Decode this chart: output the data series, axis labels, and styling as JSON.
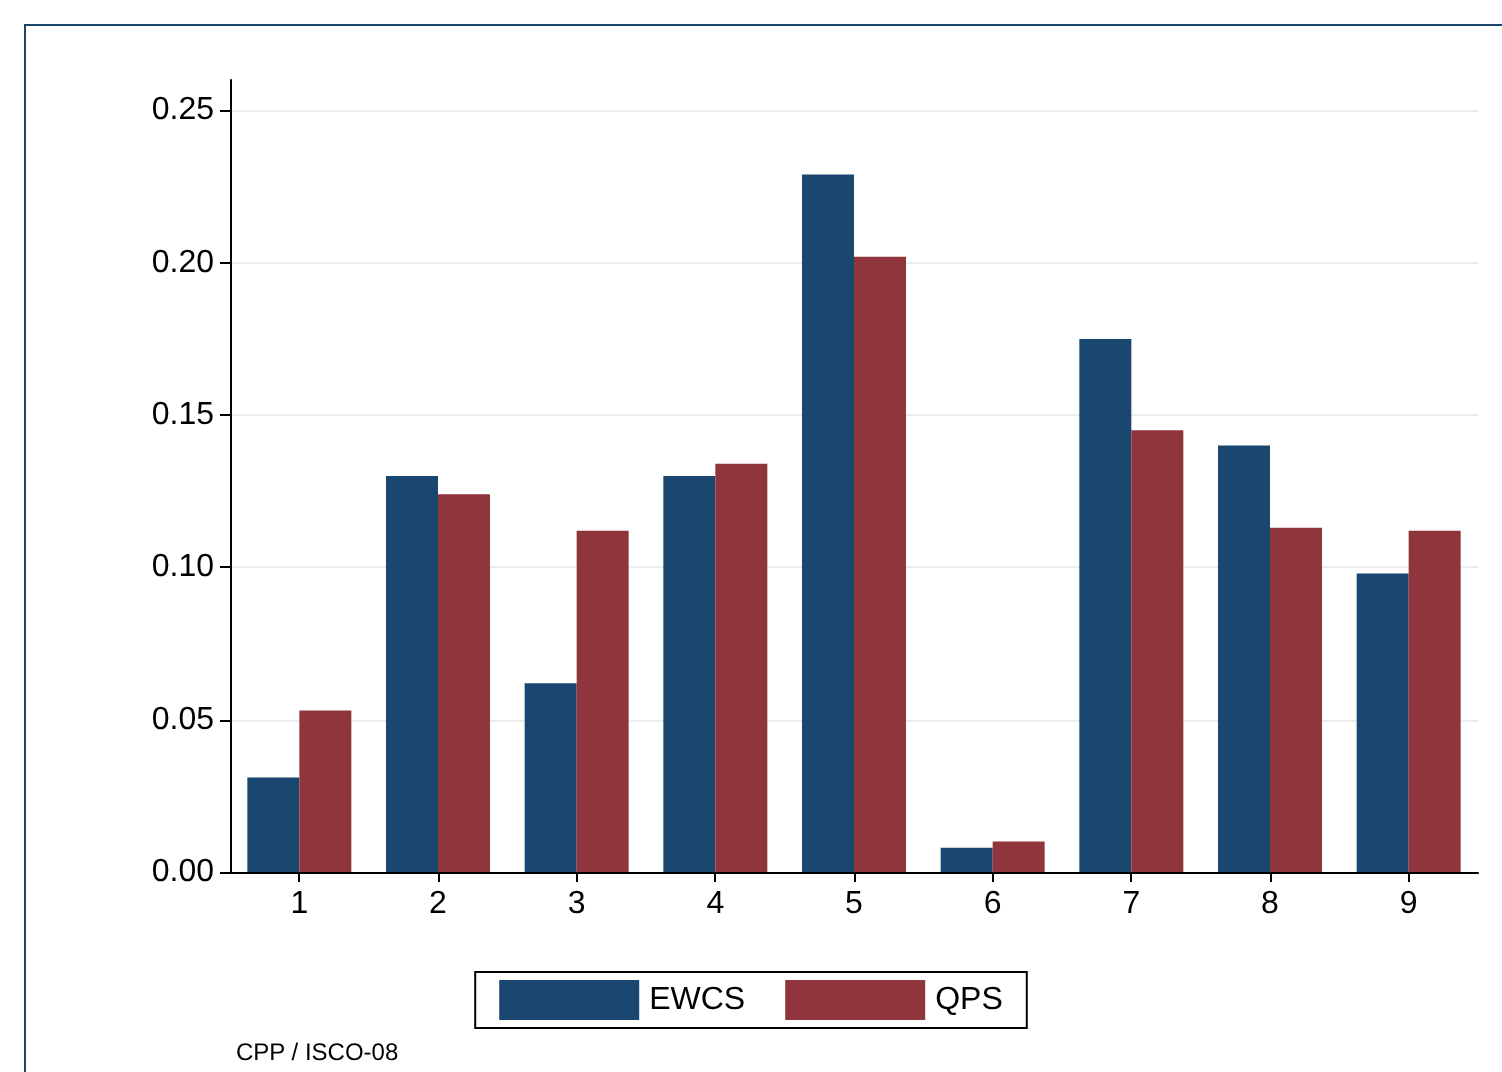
{
  "chart_data": {
    "type": "bar",
    "categories": [
      "1",
      "2",
      "3",
      "4",
      "5",
      "6",
      "7",
      "8",
      "9"
    ],
    "series": [
      {
        "name": "EWCS",
        "color": "#1a476f",
        "values": [
          0.031,
          0.13,
          0.062,
          0.13,
          0.229,
          0.008,
          0.175,
          0.14,
          0.098
        ]
      },
      {
        "name": "QPS",
        "color": "#90353b",
        "values": [
          0.053,
          0.124,
          0.112,
          0.134,
          0.202,
          0.01,
          0.145,
          0.113,
          0.112
        ]
      }
    ],
    "ylim": [
      0,
      0.26
    ],
    "yticks": [
      {
        "value": 0,
        "label": "0.00"
      },
      0.05,
      {
        "value": 0.1,
        "label": "0.10"
      },
      0.15,
      {
        "value": 0.2,
        "label": "0.20"
      },
      0.25
    ],
    "grid": "y",
    "legend": "bottom",
    "annotations": [
      "CPP / ISCO-08"
    ]
  }
}
